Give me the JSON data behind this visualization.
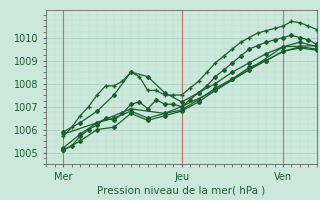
{
  "xlabel": "Pression niveau de la mer( hPa )",
  "bg_color": "#cce8dc",
  "grid_major_color": "#aaccbb",
  "grid_minor_color": "#bbddd0",
  "line_color": "#1a5e30",
  "text_color": "#1a5e30",
  "vline_color": "#cc4444",
  "ylim": [
    1004.5,
    1011.2
  ],
  "xlim": [
    0,
    48
  ],
  "yticks": [
    1005,
    1006,
    1007,
    1008,
    1009,
    1010
  ],
  "xtick_positions": [
    3,
    24,
    42
  ],
  "xtick_labels": [
    "Mer",
    "Jeu",
    "Ven"
  ],
  "vlines": [
    3,
    24,
    42
  ],
  "series": [
    {
      "xy": [
        3,
        1005.7,
        4.5,
        1006.1,
        6,
        1006.6,
        7.5,
        1007.0,
        9,
        1007.5,
        10.5,
        1007.9,
        12,
        1007.9,
        13.5,
        1008.1,
        15,
        1008.5,
        16.5,
        1008.3,
        18,
        1007.7,
        19.5,
        1007.7,
        21,
        1007.5,
        22.5,
        1007.5,
        24,
        1007.5,
        25.5,
        1007.8,
        27,
        1008.1,
        28.5,
        1008.5,
        30,
        1008.9,
        31.5,
        1009.2,
        33,
        1009.5,
        34.5,
        1009.8,
        36,
        1010.0,
        37.5,
        1010.2,
        39,
        1010.3,
        40.5,
        1010.4,
        42,
        1010.5,
        43.5,
        1010.7,
        45,
        1010.65,
        46.5,
        1010.5,
        48,
        1010.35
      ],
      "marker": "+",
      "ms": 3,
      "lw": 0.9
    },
    {
      "xy": [
        3,
        1005.1,
        4.5,
        1005.3,
        6,
        1005.7,
        7.5,
        1006.0,
        9,
        1006.2,
        10.5,
        1006.5,
        12,
        1006.4,
        13.5,
        1006.7,
        15,
        1007.1,
        16.5,
        1007.2,
        18,
        1006.9,
        19.5,
        1007.3,
        21,
        1007.1,
        22.5,
        1007.1,
        24,
        1007.0,
        25.5,
        1007.3,
        27,
        1007.6,
        28.5,
        1007.9,
        30,
        1008.3,
        31.5,
        1008.6,
        33,
        1008.9,
        34.5,
        1009.2,
        36,
        1009.5,
        37.5,
        1009.65,
        39,
        1009.8,
        40.5,
        1009.9,
        42,
        1010.0,
        43.5,
        1010.1,
        45,
        1010.0,
        46.5,
        1009.9,
        48,
        1009.7
      ],
      "marker": "D",
      "ms": 2,
      "lw": 0.9
    },
    {
      "xy": [
        3,
        1005.1,
        6,
        1005.5,
        9,
        1006.0,
        12,
        1006.1,
        15,
        1006.7,
        18,
        1006.4,
        21,
        1006.6,
        24,
        1006.8,
        27,
        1007.2,
        30,
        1007.7,
        33,
        1008.2,
        36,
        1008.6,
        39,
        1009.0,
        42,
        1009.4,
        45,
        1009.6,
        48,
        1009.5
      ],
      "marker": "D",
      "ms": 2,
      "lw": 0.9
    },
    {
      "xy": [
        3,
        1005.9,
        6,
        1006.3,
        9,
        1006.8,
        12,
        1007.5,
        15,
        1008.5,
        18,
        1008.3,
        21,
        1007.6,
        24,
        1007.2,
        27,
        1007.6,
        30,
        1008.0,
        33,
        1008.5,
        36,
        1008.9,
        39,
        1009.3,
        42,
        1009.6,
        45,
        1009.8,
        48,
        1009.6
      ],
      "marker": "D",
      "ms": 2,
      "lw": 0.9
    },
    {
      "xy": [
        3,
        1005.2,
        6,
        1005.8,
        9,
        1006.3,
        12,
        1006.5,
        15,
        1006.8,
        18,
        1006.5,
        21,
        1006.7,
        24,
        1006.85,
        27,
        1007.3,
        30,
        1007.8,
        33,
        1008.2,
        36,
        1008.7,
        39,
        1009.0,
        42,
        1009.4,
        45,
        1009.55,
        48,
        1009.45
      ],
      "marker": "D",
      "ms": 2,
      "lw": 0.9
    },
    {
      "xy": [
        3,
        1005.8,
        9,
        1006.3,
        15,
        1006.9,
        21,
        1006.7,
        24,
        1007.0,
        30,
        1007.7,
        36,
        1008.6,
        42,
        1009.6,
        48,
        1009.65
      ],
      "marker": "+",
      "ms": 3,
      "lw": 0.9
    }
  ]
}
